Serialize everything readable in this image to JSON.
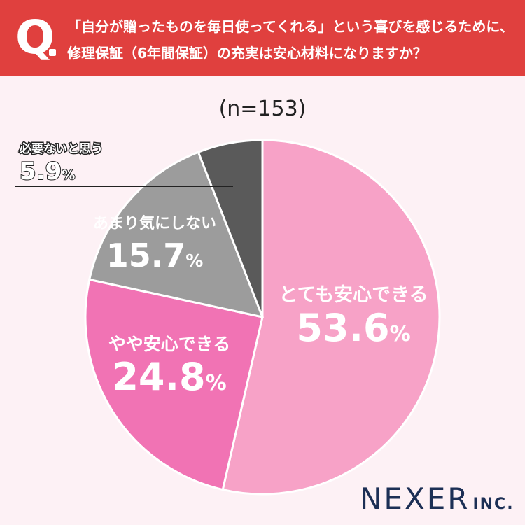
{
  "header": {
    "q_mark": "Q",
    "question_line1": "「自分が贈ったものを毎日使ってくれる」という喜びを感じるために、",
    "question_line2": "修理保証（6年間保証）の充実は安心材料になりますか？"
  },
  "sample_label": "(n=153)",
  "brand": {
    "name": "NEXER",
    "suffix": "INC."
  },
  "colors": {
    "header_bg": "#e0403e",
    "background": "#fdf1f5",
    "brand": "#1c2f55"
  },
  "chart_data": {
    "type": "pie",
    "start": "12 o'clock",
    "direction": "clockwise",
    "slices": [
      {
        "label": "とても安心できる",
        "value": 53.6,
        "display": "53.6",
        "unit": "%",
        "color": "#f7a2c7"
      },
      {
        "label": "やや安心できる",
        "value": 24.8,
        "display": "24.8",
        "unit": "%",
        "color": "#f173b4"
      },
      {
        "label": "あまり気にしない",
        "value": 15.7,
        "display": "15.7",
        "unit": "%",
        "color": "#9c9c9c"
      },
      {
        "label": "必要ないと思う",
        "value": 5.9,
        "display": "5.9",
        "unit": "%",
        "color": "#5a5a5a"
      }
    ]
  }
}
